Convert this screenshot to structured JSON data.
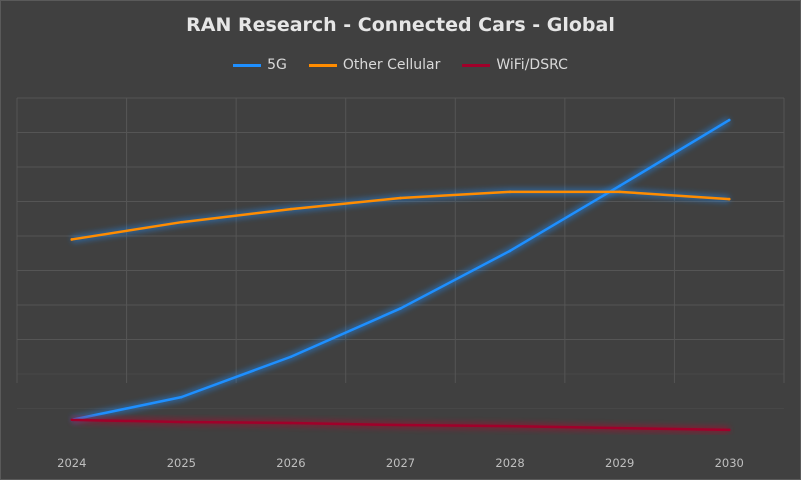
{
  "chart_data": {
    "type": "line",
    "title": "RAN Research - Connected Cars - Global",
    "categories": [
      "2024",
      "2025",
      "2026",
      "2027",
      "2028",
      "2029",
      "2030"
    ],
    "ylim": [
      0,
      10
    ],
    "y_ticks_labeled": false,
    "grid": true,
    "legend_position": "top",
    "series": [
      {
        "name": "5G",
        "color": "#1e8fff",
        "values": [
          0.67,
          1.33,
          2.5,
          3.9,
          5.57,
          7.45,
          9.36
        ]
      },
      {
        "name": "Other Cellular",
        "color": "#ff8c00",
        "values": [
          5.9,
          6.4,
          6.78,
          7.1,
          7.28,
          7.28,
          7.07
        ]
      },
      {
        "name": "WiFi/DSRC",
        "color": "#a0002a",
        "values": [
          0.67,
          0.61,
          0.58,
          0.52,
          0.49,
          0.43,
          0.38
        ]
      }
    ]
  }
}
